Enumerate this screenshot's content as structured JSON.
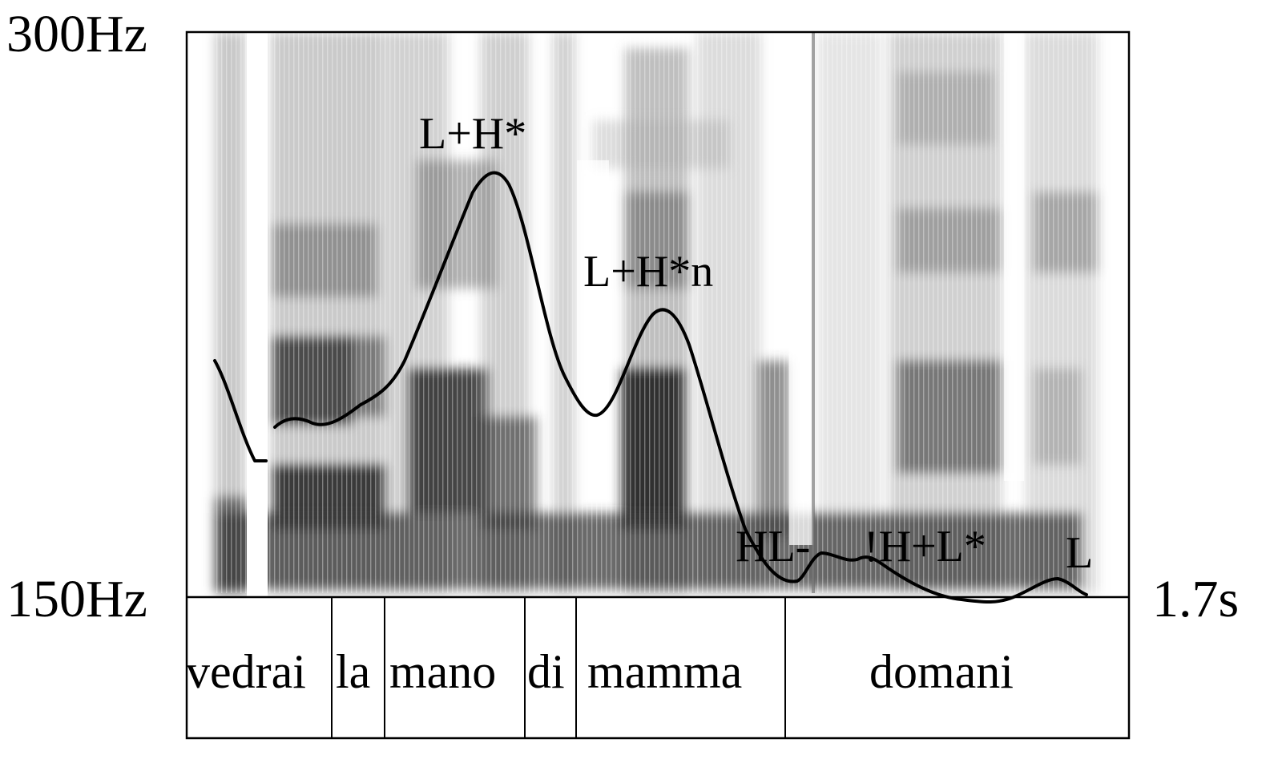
{
  "axis": {
    "f0_max_label": "300Hz",
    "f0_min_label": "150Hz",
    "time_end_label": "1.7s",
    "f0_range_hz": [
      150,
      300
    ],
    "time_range_s": [
      0,
      1.7
    ]
  },
  "tones": [
    {
      "label": "L+H*"
    },
    {
      "label": "L+H*n"
    },
    {
      "label": "HL-"
    },
    {
      "label": "!H+L*"
    },
    {
      "label": "L"
    }
  ],
  "words": [
    {
      "text": "vedrai"
    },
    {
      "text": "la"
    },
    {
      "text": "mano"
    },
    {
      "text": "di"
    },
    {
      "text": "mamma"
    },
    {
      "text": "domani"
    }
  ],
  "colors": {
    "ink": "#000000",
    "background": "#ffffff",
    "spectrogram_dark": "#1a1a1a"
  }
}
